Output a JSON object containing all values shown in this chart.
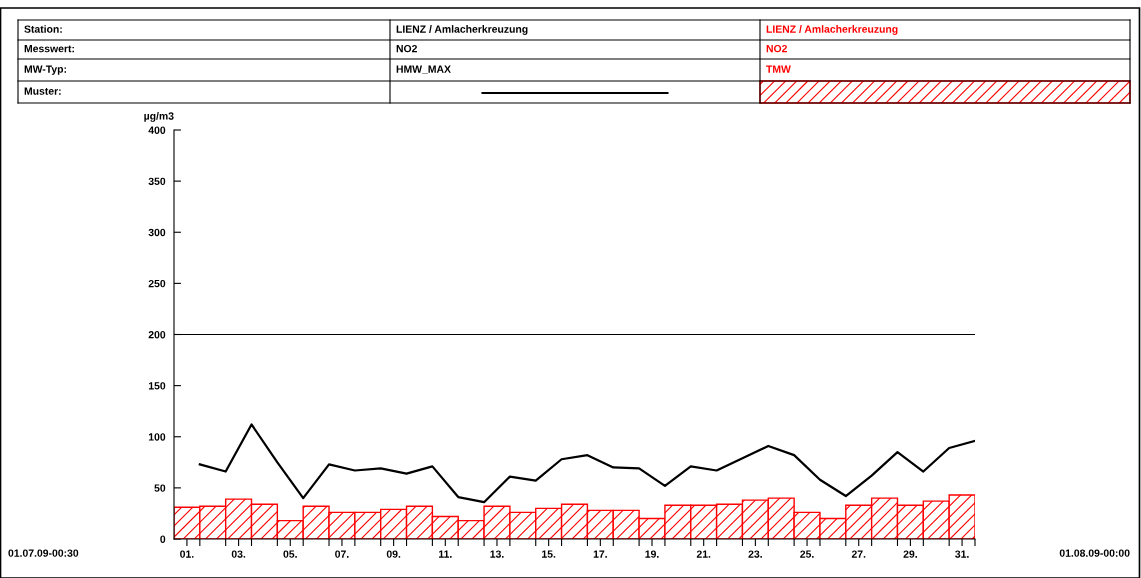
{
  "chart_data": {
    "type": "bar",
    "ylabel": "µg/m3",
    "x": [
      1.5,
      2.5,
      3.5,
      4.5,
      5.5,
      6.5,
      7.5,
      8.5,
      9.5,
      10.5,
      11.5,
      12.5,
      13.5,
      14.5,
      15.5,
      16.5,
      17.5,
      18.5,
      19.5,
      20.5,
      21.5,
      22.5,
      23.5,
      24.5,
      25.5,
      26.5,
      27.5,
      28.5,
      29.5,
      30.5,
      31.5
    ],
    "series": [
      {
        "name": "TMW",
        "color": "#ff0000",
        "values": [
          31,
          32,
          39,
          34,
          18,
          32,
          26,
          26,
          29,
          32,
          22,
          18,
          32,
          26,
          30,
          34,
          28,
          28,
          20,
          33,
          33,
          34,
          38,
          40,
          26,
          20,
          33,
          40,
          33,
          37,
          43
        ]
      },
      {
        "name": "HMW_MAX",
        "type": "line",
        "color": "#000000",
        "x": [
          2,
          3,
          4,
          5,
          6,
          7,
          8,
          9,
          10,
          11,
          12,
          13,
          14,
          15,
          16,
          17,
          18,
          19,
          20,
          21,
          22,
          23,
          24,
          25,
          26,
          27,
          28,
          29,
          30,
          31,
          32
        ],
        "values": [
          73,
          66,
          112,
          75,
          40,
          73,
          67,
          69,
          64,
          71,
          41,
          36,
          61,
          57,
          78,
          82,
          70,
          69,
          52,
          71,
          67,
          79,
          91,
          82,
          58,
          42,
          62,
          85,
          66,
          89,
          96
        ]
      }
    ],
    "xlim": [
      1,
      32
    ],
    "xticks": [
      {
        "value": 1.5,
        "label": "01."
      },
      {
        "value": 2,
        "label": null
      },
      {
        "value": 3,
        "label": null
      },
      {
        "value": 3.5,
        "label": "03."
      },
      {
        "value": 4,
        "label": null
      },
      {
        "value": 5,
        "label": null
      },
      {
        "value": 5.5,
        "label": "05."
      },
      {
        "value": 6,
        "label": null
      },
      {
        "value": 7,
        "label": null
      },
      {
        "value": 7.5,
        "label": "07."
      },
      {
        "value": 8,
        "label": null
      },
      {
        "value": 9,
        "label": null
      },
      {
        "value": 9.5,
        "label": "09."
      },
      {
        "value": 10,
        "label": null
      },
      {
        "value": 11,
        "label": null
      },
      {
        "value": 11.5,
        "label": "11."
      },
      {
        "value": 12,
        "label": null
      },
      {
        "value": 13,
        "label": null
      },
      {
        "value": 13.5,
        "label": "13."
      },
      {
        "value": 14,
        "label": null
      },
      {
        "value": 15,
        "label": null
      },
      {
        "value": 15.5,
        "label": "15."
      },
      {
        "value": 16,
        "label": null
      },
      {
        "value": 17,
        "label": null
      },
      {
        "value": 17.5,
        "label": "17."
      },
      {
        "value": 18,
        "label": null
      },
      {
        "value": 19,
        "label": null
      },
      {
        "value": 19.5,
        "label": "19."
      },
      {
        "value": 20,
        "label": null
      },
      {
        "value": 21,
        "label": null
      },
      {
        "value": 21.5,
        "label": "21."
      },
      {
        "value": 22,
        "label": null
      },
      {
        "value": 23,
        "label": null
      },
      {
        "value": 23.5,
        "label": "23."
      },
      {
        "value": 24,
        "label": null
      },
      {
        "value": 25,
        "label": null
      },
      {
        "value": 25.5,
        "label": "25."
      },
      {
        "value": 26,
        "label": null
      },
      {
        "value": 27,
        "label": null
      },
      {
        "value": 27.5,
        "label": "27."
      },
      {
        "value": 28,
        "label": null
      },
      {
        "value": 29,
        "label": null
      },
      {
        "value": 29.5,
        "label": "29."
      },
      {
        "value": 30,
        "label": null
      },
      {
        "value": 31,
        "label": null
      },
      {
        "value": 31.5,
        "label": "31."
      },
      {
        "value": 32,
        "label": null
      }
    ],
    "ylim": [
      0,
      400
    ],
    "yticks": [
      0,
      50,
      100,
      150,
      200,
      250,
      300,
      350,
      400
    ],
    "ref_lines": [
      {
        "axis": "y",
        "value": 200,
        "color": "#000000"
      }
    ],
    "legend": "top",
    "grid": false,
    "annotations": [
      "Station:",
      "Messwert:",
      "MW-Typ:",
      "Muster:",
      "LIENZ / Amlacherkreuzung",
      "NO2",
      "LIENZ / Amlacherkreuzung",
      "NO2",
      "01.07.09-00:30",
      "01.08.09-00:00"
    ]
  }
}
